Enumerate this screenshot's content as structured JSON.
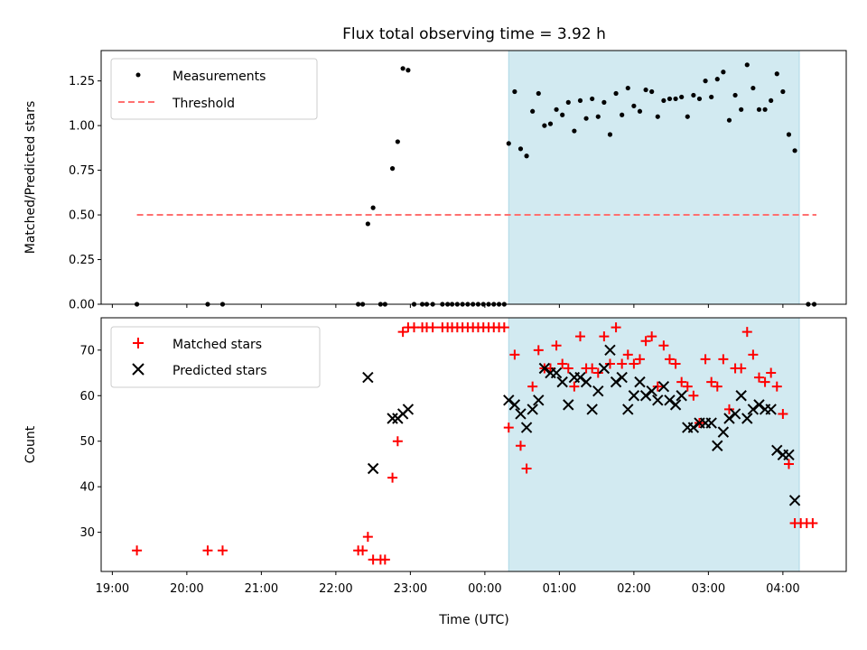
{
  "title": "Flux total observing time = 3.92 h",
  "xlabel": "Time (UTC)",
  "x_ticks": [
    "19:00",
    "20:00",
    "21:00",
    "22:00",
    "23:00",
    "00:00",
    "01:00",
    "02:00",
    "03:00",
    "04:00"
  ],
  "colors": {
    "measurement": "#000000",
    "threshold": "#ff7070",
    "matched": "#ff0000",
    "predicted": "#000000",
    "span": "#add8e6"
  },
  "chart_data": [
    {
      "type": "scatter",
      "ylabel": "Matched/Predicted stars",
      "x_unit": "hours since 19:00 UTC",
      "xlim": [
        -0.15,
        9.85
      ],
      "ylim": [
        0,
        1.42
      ],
      "y_ticks": [
        "0.00",
        "0.25",
        "0.50",
        "0.75",
        "1.00",
        "1.25"
      ],
      "legend": "top-left",
      "shaded_span": [
        5.32,
        9.22
      ],
      "threshold": {
        "name": "Threshold",
        "y": 0.5,
        "x": [
          0.33,
          9.45
        ]
      },
      "series": [
        {
          "name": "Measurements",
          "marker": "dot",
          "points": [
            [
              0.33,
              0.0
            ],
            [
              1.28,
              0.0
            ],
            [
              1.48,
              0.0
            ],
            [
              3.3,
              0.0
            ],
            [
              3.36,
              0.0
            ],
            [
              3.43,
              0.45
            ],
            [
              3.5,
              0.54
            ],
            [
              3.6,
              0.0
            ],
            [
              3.66,
              0.0
            ],
            [
              3.76,
              0.76
            ],
            [
              3.83,
              0.91
            ],
            [
              3.9,
              1.32
            ],
            [
              3.97,
              1.31
            ],
            [
              4.05,
              0.0
            ],
            [
              4.16,
              0.0
            ],
            [
              4.22,
              0.0
            ],
            [
              4.3,
              0.0
            ],
            [
              4.43,
              0.0
            ],
            [
              4.5,
              0.0
            ],
            [
              4.56,
              0.0
            ],
            [
              4.63,
              0.0
            ],
            [
              4.7,
              0.0
            ],
            [
              4.77,
              0.0
            ],
            [
              4.84,
              0.0
            ],
            [
              4.91,
              0.0
            ],
            [
              4.98,
              0.0
            ],
            [
              5.05,
              0.0
            ],
            [
              5.12,
              0.0
            ],
            [
              5.19,
              0.0
            ],
            [
              5.26,
              0.0
            ],
            [
              5.32,
              0.9
            ],
            [
              5.4,
              1.19
            ],
            [
              5.48,
              0.87
            ],
            [
              5.56,
              0.83
            ],
            [
              5.64,
              1.08
            ],
            [
              5.72,
              1.18
            ],
            [
              5.8,
              1.0
            ],
            [
              5.88,
              1.01
            ],
            [
              5.96,
              1.09
            ],
            [
              6.04,
              1.06
            ],
            [
              6.12,
              1.13
            ],
            [
              6.2,
              0.97
            ],
            [
              6.28,
              1.14
            ],
            [
              6.36,
              1.04
            ],
            [
              6.44,
              1.15
            ],
            [
              6.52,
              1.05
            ],
            [
              6.6,
              1.13
            ],
            [
              6.68,
              0.95
            ],
            [
              6.76,
              1.18
            ],
            [
              6.84,
              1.06
            ],
            [
              6.92,
              1.21
            ],
            [
              7.0,
              1.11
            ],
            [
              7.08,
              1.08
            ],
            [
              7.16,
              1.2
            ],
            [
              7.24,
              1.19
            ],
            [
              7.32,
              1.05
            ],
            [
              7.4,
              1.14
            ],
            [
              7.48,
              1.15
            ],
            [
              7.56,
              1.15
            ],
            [
              7.64,
              1.16
            ],
            [
              7.72,
              1.05
            ],
            [
              7.8,
              1.17
            ],
            [
              7.88,
              1.15
            ],
            [
              7.96,
              1.25
            ],
            [
              8.04,
              1.16
            ],
            [
              8.12,
              1.26
            ],
            [
              8.2,
              1.3
            ],
            [
              8.28,
              1.03
            ],
            [
              8.36,
              1.17
            ],
            [
              8.44,
              1.09
            ],
            [
              8.52,
              1.34
            ],
            [
              8.6,
              1.21
            ],
            [
              8.68,
              1.09
            ],
            [
              8.76,
              1.09
            ],
            [
              8.84,
              1.14
            ],
            [
              8.92,
              1.29
            ],
            [
              9.0,
              1.19
            ],
            [
              9.08,
              0.95
            ],
            [
              9.16,
              0.86
            ],
            [
              9.34,
              0.0
            ],
            [
              9.42,
              0.0
            ]
          ]
        }
      ]
    },
    {
      "type": "scatter",
      "ylabel": "Count",
      "x_unit": "hours since 19:00 UTC",
      "xlim": [
        -0.15,
        9.85
      ],
      "ylim": [
        21.4,
        77.1
      ],
      "y_ticks": [
        "30",
        "40",
        "50",
        "60",
        "70"
      ],
      "legend": "top-left",
      "shaded_span": [
        5.32,
        9.22
      ],
      "series": [
        {
          "name": "Matched stars",
          "marker": "plus",
          "points": [
            [
              0.33,
              26
            ],
            [
              1.28,
              26
            ],
            [
              1.48,
              26
            ],
            [
              3.3,
              26
            ],
            [
              3.36,
              26
            ],
            [
              3.43,
              29
            ],
            [
              3.5,
              24
            ],
            [
              3.6,
              24
            ],
            [
              3.66,
              24
            ],
            [
              3.76,
              42
            ],
            [
              3.83,
              50
            ],
            [
              3.9,
              74
            ],
            [
              3.97,
              75
            ],
            [
              4.05,
              75
            ],
            [
              4.16,
              75
            ],
            [
              4.22,
              75
            ],
            [
              4.3,
              75
            ],
            [
              4.43,
              75
            ],
            [
              4.5,
              75
            ],
            [
              4.56,
              75
            ],
            [
              4.63,
              75
            ],
            [
              4.7,
              75
            ],
            [
              4.77,
              75
            ],
            [
              4.84,
              75
            ],
            [
              4.91,
              75
            ],
            [
              4.98,
              75
            ],
            [
              5.05,
              75
            ],
            [
              5.12,
              75
            ],
            [
              5.19,
              75
            ],
            [
              5.26,
              75
            ],
            [
              5.32,
              53
            ],
            [
              5.4,
              69
            ],
            [
              5.48,
              49
            ],
            [
              5.56,
              44
            ],
            [
              5.64,
              62
            ],
            [
              5.72,
              70
            ],
            [
              5.8,
              66
            ],
            [
              5.88,
              66
            ],
            [
              5.96,
              71
            ],
            [
              6.04,
              67
            ],
            [
              6.12,
              66
            ],
            [
              6.2,
              62
            ],
            [
              6.28,
              73
            ],
            [
              6.36,
              66
            ],
            [
              6.44,
              66
            ],
            [
              6.52,
              65
            ],
            [
              6.6,
              73
            ],
            [
              6.68,
              67
            ],
            [
              6.76,
              75
            ],
            [
              6.84,
              67
            ],
            [
              6.92,
              69
            ],
            [
              7.0,
              67
            ],
            [
              7.08,
              68
            ],
            [
              7.16,
              72
            ],
            [
              7.24,
              73
            ],
            [
              7.32,
              62
            ],
            [
              7.4,
              71
            ],
            [
              7.48,
              68
            ],
            [
              7.56,
              67
            ],
            [
              7.64,
              63
            ],
            [
              7.72,
              62
            ],
            [
              7.8,
              60
            ],
            [
              7.88,
              54
            ],
            [
              7.96,
              68
            ],
            [
              8.04,
              63
            ],
            [
              8.12,
              62
            ],
            [
              8.2,
              68
            ],
            [
              8.28,
              57
            ],
            [
              8.36,
              66
            ],
            [
              8.44,
              66
            ],
            [
              8.52,
              74
            ],
            [
              8.6,
              69
            ],
            [
              8.68,
              64
            ],
            [
              8.76,
              63
            ],
            [
              8.84,
              65
            ],
            [
              8.92,
              62
            ],
            [
              9.0,
              56
            ],
            [
              9.08,
              45
            ],
            [
              9.16,
              32
            ],
            [
              9.24,
              32
            ],
            [
              9.32,
              32
            ],
            [
              9.4,
              32
            ]
          ]
        },
        {
          "name": "Predicted stars",
          "marker": "x",
          "points": [
            [
              3.43,
              64
            ],
            [
              3.5,
              44
            ],
            [
              3.76,
              55
            ],
            [
              3.83,
              55
            ],
            [
              3.9,
              56
            ],
            [
              3.97,
              57
            ],
            [
              5.32,
              59
            ],
            [
              5.4,
              58
            ],
            [
              5.48,
              56
            ],
            [
              5.56,
              53
            ],
            [
              5.64,
              57
            ],
            [
              5.72,
              59
            ],
            [
              5.8,
              66
            ],
            [
              5.88,
              65
            ],
            [
              5.96,
              65
            ],
            [
              6.04,
              63
            ],
            [
              6.12,
              58
            ],
            [
              6.2,
              64
            ],
            [
              6.28,
              64
            ],
            [
              6.36,
              63
            ],
            [
              6.44,
              57
            ],
            [
              6.52,
              61
            ],
            [
              6.6,
              66
            ],
            [
              6.68,
              70
            ],
            [
              6.76,
              63
            ],
            [
              6.84,
              64
            ],
            [
              6.92,
              57
            ],
            [
              7.0,
              60
            ],
            [
              7.08,
              63
            ],
            [
              7.16,
              60
            ],
            [
              7.24,
              61
            ],
            [
              7.32,
              59
            ],
            [
              7.4,
              62
            ],
            [
              7.48,
              59
            ],
            [
              7.56,
              58
            ],
            [
              7.64,
              60
            ],
            [
              7.72,
              53
            ],
            [
              7.8,
              53
            ],
            [
              7.88,
              54
            ],
            [
              7.96,
              54
            ],
            [
              8.04,
              54
            ],
            [
              8.12,
              49
            ],
            [
              8.2,
              52
            ],
            [
              8.28,
              55
            ],
            [
              8.36,
              56
            ],
            [
              8.44,
              60
            ],
            [
              8.52,
              55
            ],
            [
              8.6,
              57
            ],
            [
              8.68,
              58
            ],
            [
              8.76,
              57
            ],
            [
              8.84,
              57
            ],
            [
              8.92,
              48
            ],
            [
              9.0,
              47
            ],
            [
              9.08,
              47
            ],
            [
              9.16,
              37
            ]
          ]
        }
      ]
    }
  ]
}
